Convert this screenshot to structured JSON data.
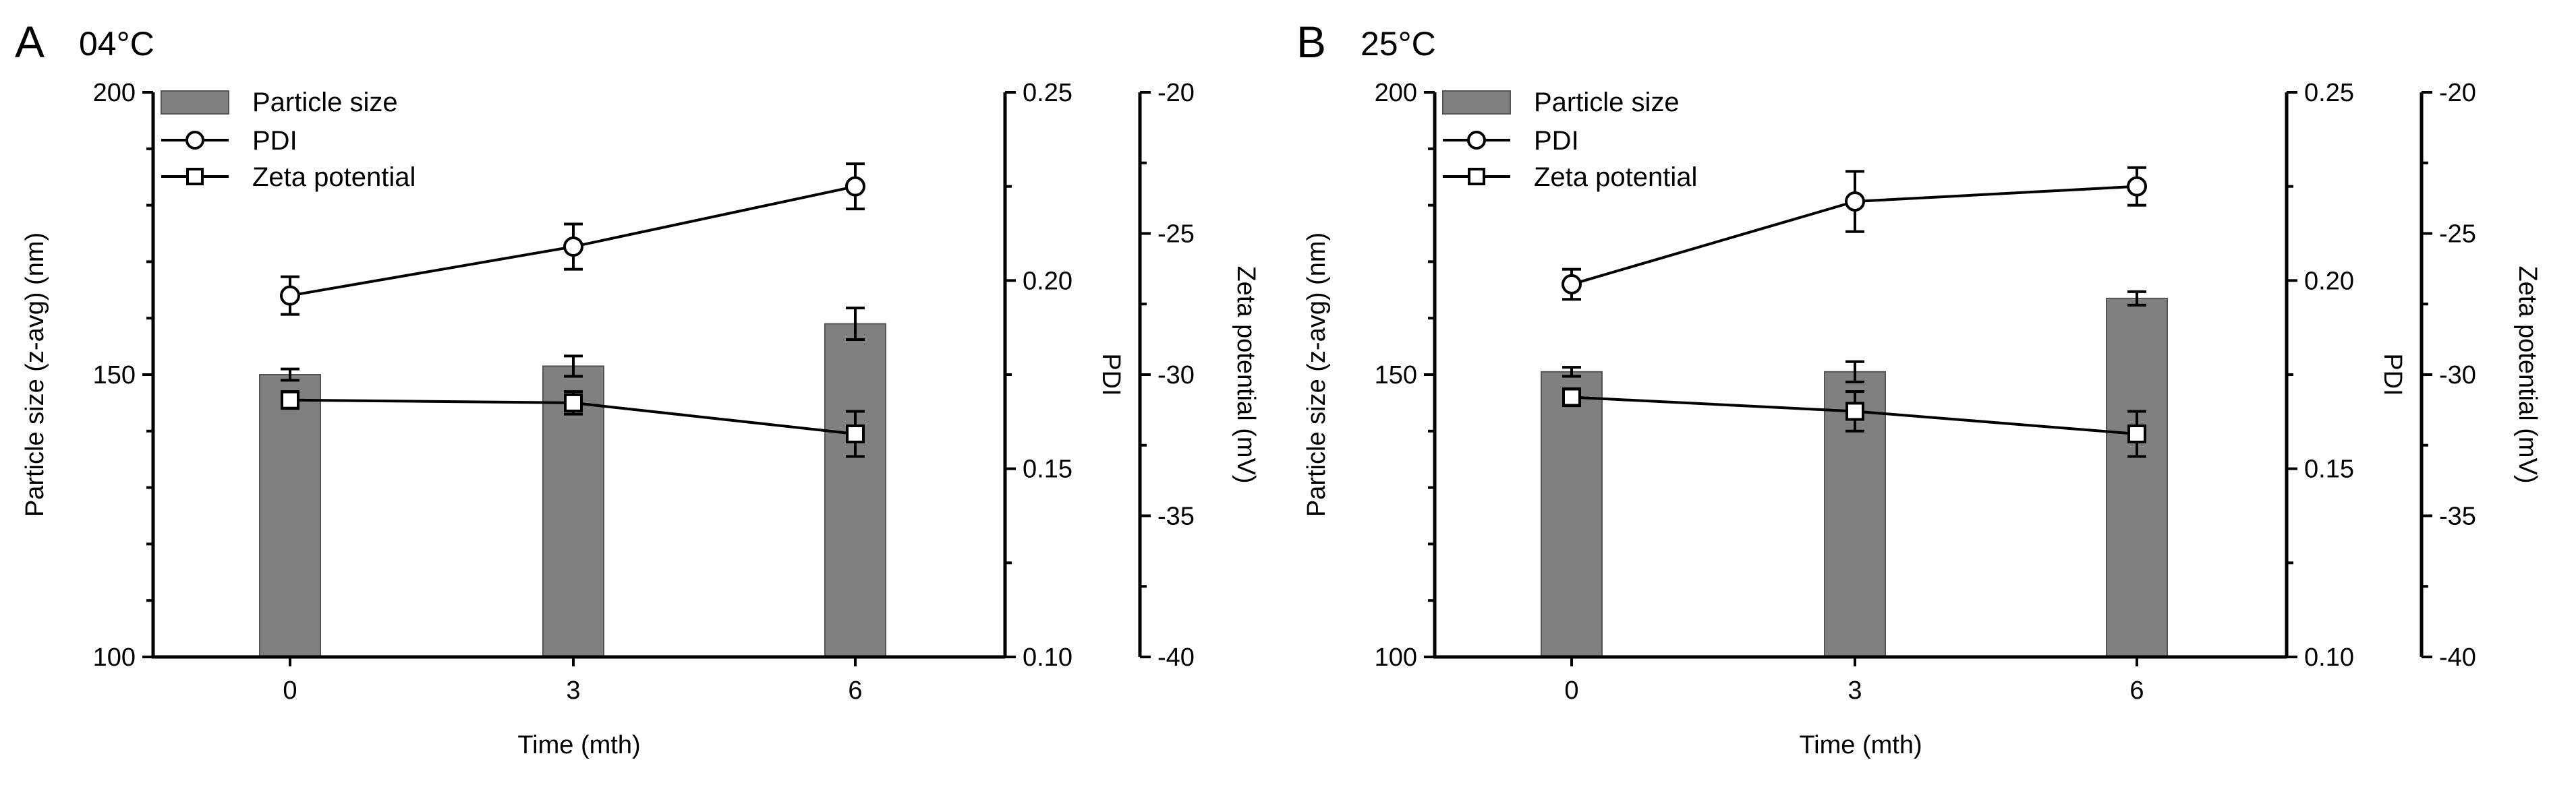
{
  "chart_data": [
    {
      "panel": "A",
      "title": "04°C",
      "type": "bar+line",
      "xlabel": "Time (mth)",
      "categories": [
        "0",
        "3",
        "6"
      ],
      "y1": {
        "label": "Particle size (z-avg) (nm)",
        "lim": [
          100,
          200
        ],
        "ticks": [
          "100",
          "150",
          "200"
        ]
      },
      "y2": {
        "label": "PDI",
        "lim": [
          0.1,
          0.25
        ],
        "ticks": [
          "0.10",
          "0.15",
          "0.20",
          "0.25"
        ]
      },
      "y3": {
        "label": "Zeta potential (mV)",
        "lim": [
          -40,
          -20
        ],
        "ticks": [
          "-40",
          "-35",
          "-30",
          "-25",
          "-20"
        ]
      },
      "legend": [
        "Particle size",
        "PDI",
        "Zeta potential"
      ],
      "series": [
        {
          "name": "Particle size",
          "kind": "bar",
          "axis": "y1",
          "values": [
            150.0,
            151.5,
            159.0
          ],
          "errors": [
            1.0,
            1.8,
            2.8
          ]
        },
        {
          "name": "PDI",
          "kind": "line",
          "marker": "circle",
          "axis": "y2",
          "values": [
            0.196,
            0.209,
            0.225
          ],
          "errors": [
            0.005,
            0.006,
            0.006
          ]
        },
        {
          "name": "Zeta potential",
          "kind": "line",
          "marker": "square",
          "axis": "y3",
          "values": [
            -30.9,
            -31.0,
            -32.1
          ],
          "errors": [
            0.3,
            0.4,
            0.8
          ]
        }
      ]
    },
    {
      "panel": "B",
      "title": "25°C",
      "type": "bar+line",
      "xlabel": "Time (mth)",
      "categories": [
        "0",
        "3",
        "6"
      ],
      "y1": {
        "label": "Particle size (z-avg) (nm)",
        "lim": [
          100,
          200
        ],
        "ticks": [
          "100",
          "150",
          "200"
        ]
      },
      "y2": {
        "label": "PDI",
        "lim": [
          0.1,
          0.25
        ],
        "ticks": [
          "0.10",
          "0.15",
          "0.20",
          "0.25"
        ]
      },
      "y3": {
        "label": "Zeta potential (mV)",
        "lim": [
          -40,
          -20
        ],
        "ticks": [
          "-40",
          "-35",
          "-30",
          "-25",
          "-20"
        ]
      },
      "legend": [
        "Particle size",
        "PDI",
        "Zeta potential"
      ],
      "series": [
        {
          "name": "Particle size",
          "kind": "bar",
          "axis": "y1",
          "values": [
            150.5,
            150.5,
            163.5
          ],
          "errors": [
            0.8,
            1.8,
            1.2
          ]
        },
        {
          "name": "PDI",
          "kind": "line",
          "marker": "circle",
          "axis": "y2",
          "values": [
            0.199,
            0.221,
            0.225
          ],
          "errors": [
            0.004,
            0.008,
            0.005
          ]
        },
        {
          "name": "Zeta potential",
          "kind": "line",
          "marker": "square",
          "axis": "y3",
          "values": [
            -30.8,
            -31.3,
            -32.1
          ],
          "errors": [
            0.3,
            0.7,
            0.8
          ]
        }
      ]
    }
  ],
  "colors": {
    "bar_fill": "#808080",
    "bar_stroke": "#555555",
    "line": "#000000",
    "marker_fill": "#ffffff"
  }
}
